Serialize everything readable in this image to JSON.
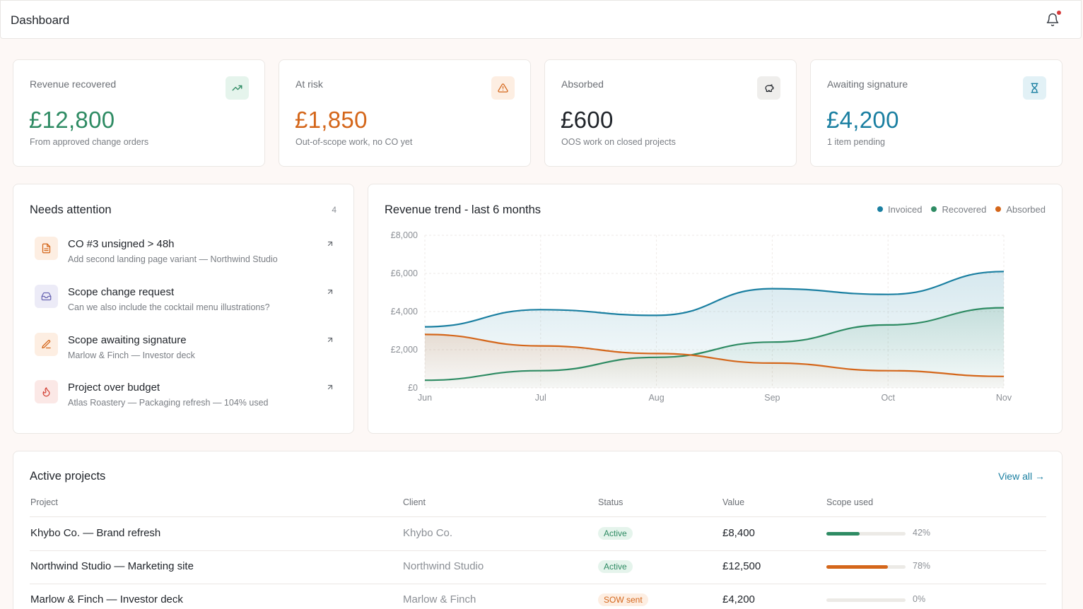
{
  "header": {
    "title": "Dashboard"
  },
  "stats": [
    {
      "label": "Revenue recovered",
      "value": "£12,800",
      "sub": "From approved change orders",
      "color": "#2e8b63",
      "icon": "trending-up-icon"
    },
    {
      "label": "At risk",
      "value": "£1,850",
      "sub": "Out-of-scope work, no CO yet",
      "color": "#d4661a",
      "icon": "warning-icon"
    },
    {
      "label": "Absorbed",
      "value": "£600",
      "sub": "OOS work on closed projects",
      "color": "#1f2329",
      "icon": "piggy-bank-icon"
    },
    {
      "label": "Awaiting signature",
      "value": "£4,200",
      "sub": "1 item pending",
      "color": "#1a7fa1",
      "icon": "hourglass-icon"
    }
  ],
  "attention": {
    "title": "Needs attention",
    "count": "4",
    "items": [
      {
        "title": "CO #3 unsigned > 48h",
        "desc": "Add second landing page variant — Northwind Studio",
        "icon": "document-icon"
      },
      {
        "title": "Scope change request",
        "desc": "Can we also include the cocktail menu illustrations?",
        "icon": "inbox-icon"
      },
      {
        "title": "Scope awaiting signature",
        "desc": "Marlow & Finch — Investor deck",
        "icon": "pen-icon"
      },
      {
        "title": "Project over budget",
        "desc": "Atlas Roastery — Packaging refresh — 104% used",
        "icon": "flame-icon"
      }
    ]
  },
  "chart_data": {
    "type": "area",
    "title": "Revenue trend - last 6 months",
    "categories": [
      "Jun",
      "Jul",
      "Aug",
      "Sep",
      "Oct",
      "Nov"
    ],
    "yticks": [
      "£0",
      "£2,000",
      "£4,000",
      "£6,000",
      "£8,000"
    ],
    "ylim": [
      0,
      8000
    ],
    "grid": true,
    "legend_position": "top-right",
    "series": [
      {
        "name": "Invoiced",
        "color": "#1a7fa1",
        "values": [
          3200,
          4100,
          3800,
          5200,
          4900,
          6100
        ]
      },
      {
        "name": "Recovered",
        "color": "#2e8b63",
        "values": [
          400,
          900,
          1600,
          2400,
          3300,
          4200
        ]
      },
      {
        "name": "Absorbed",
        "color": "#d4661a",
        "values": [
          2800,
          2200,
          1800,
          1300,
          900,
          600
        ]
      }
    ]
  },
  "projects": {
    "title": "Active projects",
    "view_all": "View all →",
    "columns": [
      "Project",
      "Client",
      "Status",
      "Value",
      "Scope used"
    ],
    "rows": [
      {
        "name": "Khybo Co. — Brand refresh",
        "client": "Khybo Co.",
        "status": "Active",
        "value": "£8,400",
        "scope": 0.42,
        "scope_label": "42%",
        "bar_color": "#2e8b63",
        "badge_bg": "#e5f4ec",
        "badge_fg": "#2e8b63"
      },
      {
        "name": "Northwind Studio — Marketing site",
        "client": "Northwind Studio",
        "status": "Active",
        "value": "£12,500",
        "scope": 0.78,
        "scope_label": "78%",
        "bar_color": "#d4661a",
        "badge_bg": "#e5f4ec",
        "badge_fg": "#2e8b63"
      },
      {
        "name": "Marlow & Finch — Investor deck",
        "client": "Marlow & Finch",
        "status": "SOW sent",
        "value": "£4,200",
        "scope": 0,
        "scope_label": "0%",
        "bar_color": "#2e8b63",
        "badge_bg": "#fdeee2",
        "badge_fg": "#d4661a"
      }
    ]
  }
}
